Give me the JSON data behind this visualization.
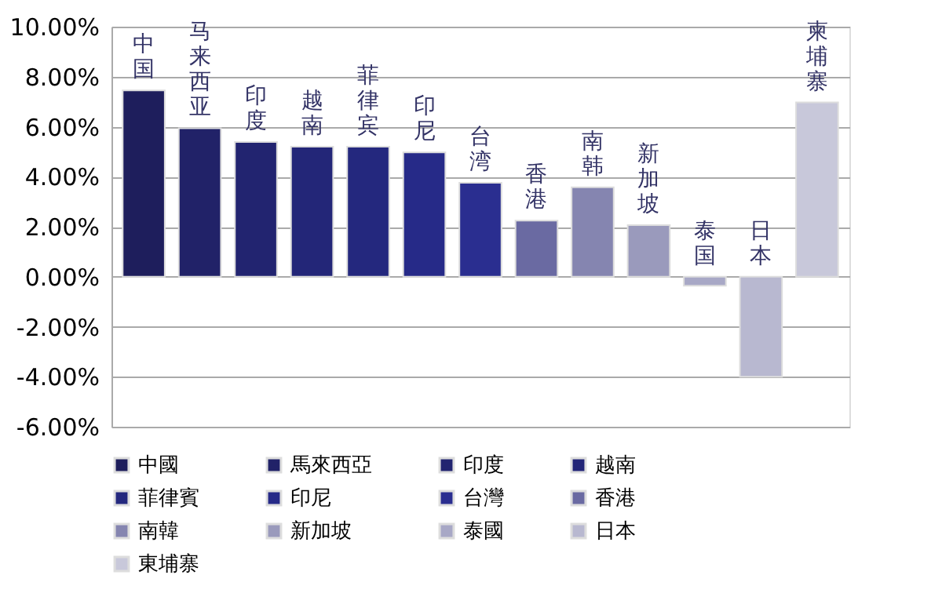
{
  "chart_data": {
    "type": "bar",
    "categories": [
      "中国",
      "马来西亚",
      "印度",
      "越南",
      "菲律宾",
      "印尼",
      "台湾",
      "香港",
      "南韩",
      "新加坡",
      "泰国",
      "日本",
      "柬埔寨"
    ],
    "series": [
      {
        "name": "中國",
        "color": "#1e1e5c",
        "values": [
          7.45,
          null,
          null,
          null,
          null,
          null,
          null,
          null,
          null,
          null,
          null,
          null,
          null
        ]
      },
      {
        "name": "馬來西亞",
        "color": "#212268",
        "values": [
          null,
          5.94,
          null,
          null,
          null,
          null,
          null,
          null,
          null,
          null,
          null,
          null,
          null
        ]
      },
      {
        "name": "印度",
        "color": "#222470",
        "values": [
          null,
          null,
          5.39,
          null,
          null,
          null,
          null,
          null,
          null,
          null,
          null,
          null,
          null
        ]
      },
      {
        "name": "越南",
        "color": "#232678",
        "values": [
          null,
          null,
          null,
          5.2,
          null,
          null,
          null,
          null,
          null,
          null,
          null,
          null,
          null
        ]
      },
      {
        "name": "菲律賓",
        "color": "#24287e",
        "values": [
          null,
          null,
          null,
          null,
          5.2,
          null,
          null,
          null,
          null,
          null,
          null,
          null,
          null
        ]
      },
      {
        "name": "印尼",
        "color": "#262a88",
        "values": [
          null,
          null,
          null,
          null,
          null,
          4.97,
          null,
          null,
          null,
          null,
          null,
          null,
          null
        ]
      },
      {
        "name": "台灣",
        "color": "#2a2e90",
        "values": [
          null,
          null,
          null,
          null,
          null,
          null,
          3.76,
          null,
          null,
          null,
          null,
          null,
          null
        ]
      },
      {
        "name": "香港",
        "color": "#6a6aa2",
        "values": [
          null,
          null,
          null,
          null,
          null,
          null,
          null,
          2.24,
          null,
          null,
          null,
          null,
          null
        ]
      },
      {
        "name": "南韓",
        "color": "#8585b0",
        "values": [
          null,
          null,
          null,
          null,
          null,
          null,
          null,
          null,
          3.58,
          null,
          null,
          null,
          null
        ]
      },
      {
        "name": "新加坡",
        "color": "#9a9abc",
        "values": [
          null,
          null,
          null,
          null,
          null,
          null,
          null,
          null,
          null,
          2.06,
          null,
          null,
          null
        ]
      },
      {
        "name": "泰國",
        "color": "#a8a8c6",
        "values": [
          null,
          null,
          null,
          null,
          null,
          null,
          null,
          null,
          null,
          null,
          -0.36,
          null,
          null
        ]
      },
      {
        "name": "日本",
        "color": "#b8b8d0",
        "values": [
          null,
          null,
          null,
          null,
          null,
          null,
          null,
          null,
          null,
          null,
          null,
          -4.0,
          null
        ]
      },
      {
        "name": "東埔寨",
        "color": "#c8c8da",
        "values": [
          null,
          null,
          null,
          null,
          null,
          null,
          null,
          null,
          null,
          null,
          null,
          null,
          6.97
        ]
      }
    ],
    "ylim": [
      -6,
      10
    ],
    "yticks": [
      {
        "value": -6,
        "label": "-6.00%"
      },
      {
        "value": -4,
        "label": "-4.00%"
      },
      {
        "value": -2,
        "label": "-2.00%"
      },
      {
        "value": 0,
        "label": "0.00%"
      },
      {
        "value": 2,
        "label": "2.00%"
      },
      {
        "value": 4,
        "label": "4.00%"
      },
      {
        "value": 6,
        "label": "6.00%"
      },
      {
        "value": 8,
        "label": "8.00%"
      },
      {
        "value": 10,
        "label": "10.00%"
      }
    ],
    "grid": "y",
    "legend": "bottom",
    "tick_labels": "y"
  }
}
